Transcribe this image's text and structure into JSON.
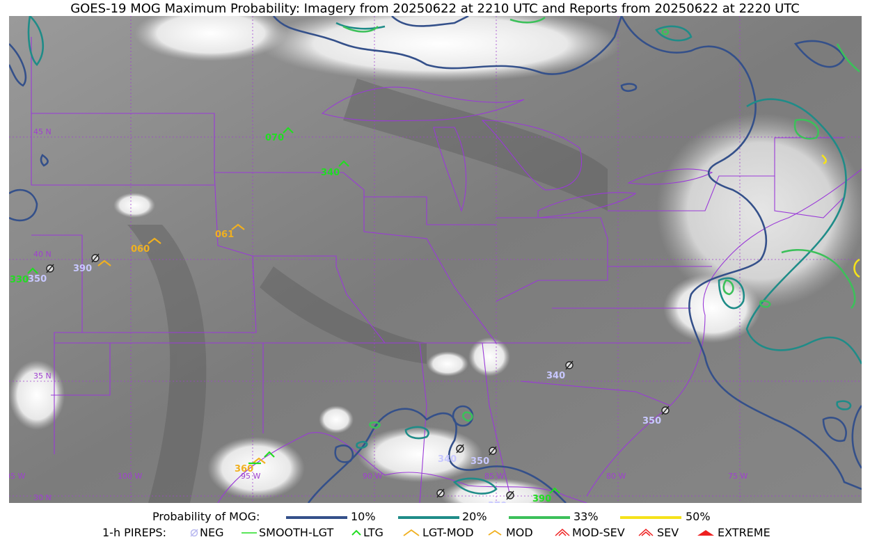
{
  "title": "GOES-19 MOG Maximum Probability: Imagery from 20250622 at 2210 UTC and Reports from 20250622 at 2220 UTC",
  "lat_labels": [
    "45 N",
    "40 N",
    "35 N",
    "30 N"
  ],
  "lon_labels": [
    "105 W",
    "100 W",
    "95 W",
    "90 W",
    "85 W",
    "80 W",
    "75 W"
  ],
  "pireps": [
    {
      "code": "070",
      "color": "#22dd22"
    },
    {
      "code": "340",
      "color": "#22dd22"
    },
    {
      "code": "061",
      "color": "#f0b020"
    },
    {
      "code": "060",
      "color": "#f0b020"
    },
    {
      "code": "390",
      "color": "#c8c8ff"
    },
    {
      "code": "330",
      "color": "#22dd22"
    },
    {
      "code": "350",
      "color": "#c8c8ff"
    },
    {
      "code": "340",
      "color": "#c8c8ff"
    },
    {
      "code": "350",
      "color": "#c8c8ff"
    },
    {
      "code": "340",
      "color": "#c8c8ff"
    },
    {
      "code": "350",
      "color": "#c8c8ff"
    },
    {
      "code": "360",
      "color": "#f0b020"
    },
    {
      "code": "370",
      "color": "#c8c8ff"
    },
    {
      "code": "390",
      "color": "#22dd22"
    }
  ],
  "legend": {
    "prob_label": "Probability of MOG:",
    "prob_items": [
      {
        "label": "10%",
        "color": "#34508a"
      },
      {
        "label": "20%",
        "color": "#1f8c88"
      },
      {
        "label": "33%",
        "color": "#3cc05a"
      },
      {
        "label": "50%",
        "color": "#f5e21a"
      }
    ],
    "pirep_label": "1-h PIREPS:",
    "pirep_items": [
      {
        "label": "NEG",
        "icon": "neg-icon",
        "color": "#b9b9f0"
      },
      {
        "label": "SMOOTH-LGT",
        "icon": "smooth-lgt-icon",
        "color": "#22dd22"
      },
      {
        "label": "LTG",
        "icon": "ltg-icon",
        "color": "#22dd22"
      },
      {
        "label": "LGT-MOD",
        "icon": "lgt-mod-icon",
        "color": "#f0b020"
      },
      {
        "label": "MOD",
        "icon": "mod-icon",
        "color": "#f0b020"
      },
      {
        "label": "MOD-SEV",
        "icon": "mod-sev-icon",
        "color": "#ee2020"
      },
      {
        "label": "SEV",
        "icon": "sev-icon",
        "color": "#ee2020"
      },
      {
        "label": "EXTREME",
        "icon": "extreme-icon",
        "color": "#ee2020"
      }
    ]
  }
}
